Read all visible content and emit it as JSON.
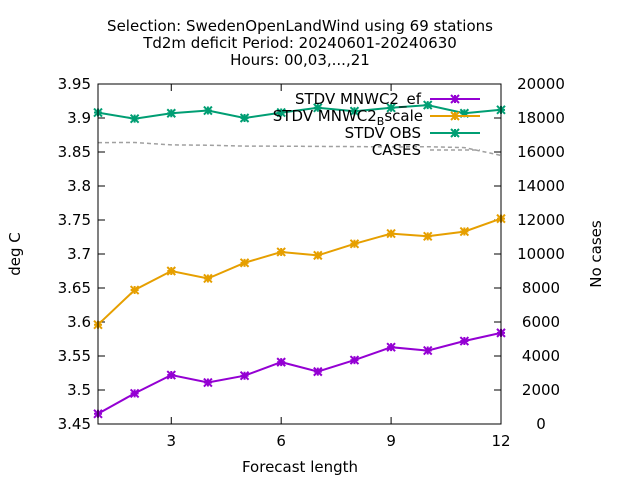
{
  "chart_data": {
    "type": "line",
    "title_lines": [
      "Selection: SwedenOpenLandWind using    69 stations",
      "Td2m deficit   Period: 20240601-20240630",
      "Hours: 00,03,...,21"
    ],
    "xlabel": "Forecast length",
    "ylabel": "deg C",
    "y2label": "No cases",
    "xlim": [
      1,
      12
    ],
    "ylim": [
      3.45,
      3.95
    ],
    "y2lim": [
      0,
      20000
    ],
    "xticks": [
      "3",
      "6",
      "9",
      "12"
    ],
    "yticks": [
      "3.45",
      "3.5",
      "3.55",
      "3.6",
      "3.65",
      "3.7",
      "3.75",
      "3.8",
      "3.85",
      "3.9",
      "3.95"
    ],
    "y2ticks": [
      "0",
      "2000",
      "4000",
      "6000",
      "8000",
      "10000",
      "12000",
      "14000",
      "16000",
      "18000",
      "20000"
    ],
    "legend_position": "top-right",
    "x": [
      1,
      2,
      3,
      4,
      5,
      6,
      7,
      8,
      9,
      10,
      11,
      12
    ],
    "series": [
      {
        "name": "STDV MNWC2_ef",
        "color": "#9400d3",
        "marker": "star",
        "axis": "y1",
        "values": [
          3.465,
          3.495,
          3.522,
          3.511,
          3.521,
          3.541,
          3.527,
          3.544,
          3.563,
          3.558,
          3.572,
          3.584
        ]
      },
      {
        "name": "STDV MNWC2_Bscale",
        "legend_main": "STDV MNWC2",
        "legend_sub": "B",
        "legend_tail": "scale",
        "color": "#e69f00",
        "marker": "star",
        "axis": "y1",
        "values": [
          3.596,
          3.647,
          3.675,
          3.664,
          3.687,
          3.703,
          3.698,
          3.715,
          3.73,
          3.726,
          3.733,
          3.752
        ]
      },
      {
        "name": "STDV OBS",
        "color": "#009e73",
        "marker": "star",
        "axis": "y1",
        "values": [
          3.908,
          3.899,
          3.907,
          3.911,
          3.9,
          3.908,
          3.915,
          3.91,
          3.915,
          3.919,
          3.907,
          3.912
        ]
      },
      {
        "name": "CASES",
        "color": "#a0a0a0",
        "marker": "none",
        "dash": true,
        "axis": "y2",
        "values": [
          16550,
          16560,
          16420,
          16400,
          16350,
          16340,
          16330,
          16320,
          16300,
          16310,
          16260,
          15800
        ]
      }
    ]
  }
}
